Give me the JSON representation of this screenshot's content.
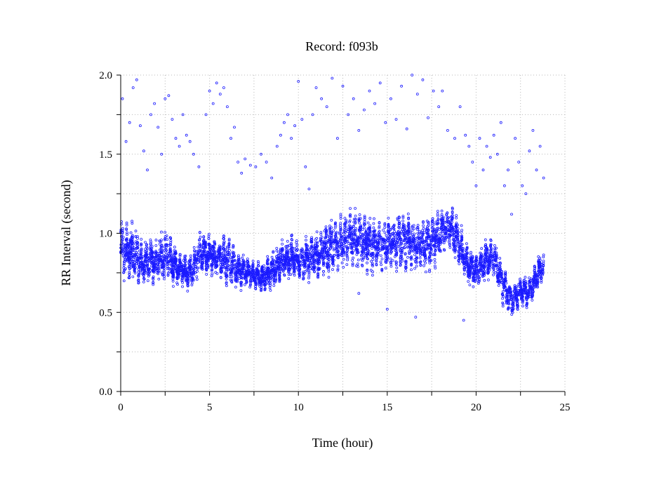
{
  "chart_data": {
    "type": "scatter",
    "title": "Record:  f093b",
    "xlabel": "Time (hour)",
    "ylabel": "RR Interval (second)",
    "xlim": [
      0,
      25
    ],
    "ylim": [
      0,
      2
    ],
    "xticks": [
      0,
      5,
      10,
      15,
      20,
      25
    ],
    "xtick_labels": [
      "0",
      "5",
      "10",
      "15",
      "20",
      "25"
    ],
    "yticks": [
      0,
      0.5,
      1.0,
      1.5,
      2.0
    ],
    "ytick_labels": [
      "0.0",
      "0.5",
      "1.0",
      "1.5",
      "2.0"
    ],
    "grid": true,
    "marker_color": "#1a1aff",
    "series": [
      {
        "name": "",
        "trend": [
          [
            0.0,
            0.9,
            0.22
          ],
          [
            0.4,
            0.88,
            0.22
          ],
          [
            0.8,
            0.86,
            0.22
          ],
          [
            1.2,
            0.8,
            0.14
          ],
          [
            1.6,
            0.83,
            0.16
          ],
          [
            2.0,
            0.82,
            0.16
          ],
          [
            2.5,
            0.86,
            0.22
          ],
          [
            3.0,
            0.8,
            0.14
          ],
          [
            3.5,
            0.76,
            0.12
          ],
          [
            4.0,
            0.75,
            0.12
          ],
          [
            4.5,
            0.88,
            0.16
          ],
          [
            5.0,
            0.87,
            0.14
          ],
          [
            5.5,
            0.84,
            0.14
          ],
          [
            6.0,
            0.84,
            0.2
          ],
          [
            6.5,
            0.78,
            0.14
          ],
          [
            7.0,
            0.76,
            0.12
          ],
          [
            7.5,
            0.73,
            0.1
          ],
          [
            8.0,
            0.72,
            0.1
          ],
          [
            8.5,
            0.76,
            0.12
          ],
          [
            9.0,
            0.82,
            0.14
          ],
          [
            9.5,
            0.85,
            0.16
          ],
          [
            10.0,
            0.83,
            0.14
          ],
          [
            10.5,
            0.84,
            0.16
          ],
          [
            11.0,
            0.86,
            0.18
          ],
          [
            11.5,
            0.9,
            0.18
          ],
          [
            12.0,
            0.92,
            0.2
          ],
          [
            12.5,
            0.95,
            0.2
          ],
          [
            13.0,
            0.97,
            0.22
          ],
          [
            13.5,
            0.96,
            0.22
          ],
          [
            14.0,
            0.93,
            0.2
          ],
          [
            14.5,
            0.92,
            0.2
          ],
          [
            15.0,
            0.93,
            0.2
          ],
          [
            15.5,
            0.95,
            0.2
          ],
          [
            16.0,
            0.96,
            0.22
          ],
          [
            16.5,
            0.93,
            0.2
          ],
          [
            17.0,
            0.92,
            0.2
          ],
          [
            17.5,
            0.95,
            0.2
          ],
          [
            18.0,
            1.0,
            0.18
          ],
          [
            18.5,
            1.05,
            0.18
          ],
          [
            19.0,
            0.93,
            0.16
          ],
          [
            19.5,
            0.8,
            0.14
          ],
          [
            20.0,
            0.76,
            0.14
          ],
          [
            20.5,
            0.82,
            0.14
          ],
          [
            21.0,
            0.84,
            0.14
          ],
          [
            21.5,
            0.68,
            0.16
          ],
          [
            22.0,
            0.56,
            0.12
          ],
          [
            22.5,
            0.64,
            0.12
          ],
          [
            23.0,
            0.62,
            0.12
          ],
          [
            23.5,
            0.75,
            0.12
          ],
          [
            23.8,
            0.8,
            0.1
          ]
        ],
        "outliers": [
          [
            0.1,
            1.85
          ],
          [
            0.3,
            1.58
          ],
          [
            0.5,
            1.7
          ],
          [
            0.7,
            1.92
          ],
          [
            0.9,
            1.97
          ],
          [
            1.1,
            1.68
          ],
          [
            1.3,
            1.52
          ],
          [
            1.5,
            1.4
          ],
          [
            1.7,
            1.75
          ],
          [
            1.9,
            1.82
          ],
          [
            2.1,
            1.67
          ],
          [
            2.3,
            1.5
          ],
          [
            2.5,
            1.85
          ],
          [
            2.7,
            1.87
          ],
          [
            2.9,
            1.72
          ],
          [
            3.1,
            1.6
          ],
          [
            3.3,
            1.55
          ],
          [
            3.5,
            1.75
          ],
          [
            3.7,
            1.62
          ],
          [
            3.9,
            1.58
          ],
          [
            4.1,
            1.5
          ],
          [
            4.4,
            1.42
          ],
          [
            4.8,
            1.75
          ],
          [
            5.0,
            1.9
          ],
          [
            5.2,
            1.82
          ],
          [
            5.4,
            1.95
          ],
          [
            5.6,
            1.88
          ],
          [
            5.8,
            1.92
          ],
          [
            6.0,
            1.8
          ],
          [
            6.2,
            1.6
          ],
          [
            6.4,
            1.67
          ],
          [
            6.6,
            1.45
          ],
          [
            6.8,
            1.38
          ],
          [
            7.0,
            1.47
          ],
          [
            7.3,
            1.43
          ],
          [
            7.6,
            1.42
          ],
          [
            7.9,
            1.5
          ],
          [
            8.2,
            1.45
          ],
          [
            8.5,
            1.35
          ],
          [
            8.8,
            1.55
          ],
          [
            9.0,
            1.62
          ],
          [
            9.2,
            1.7
          ],
          [
            9.4,
            1.75
          ],
          [
            9.6,
            1.6
          ],
          [
            9.8,
            1.68
          ],
          [
            10.0,
            1.96
          ],
          [
            10.2,
            1.72
          ],
          [
            10.4,
            1.42
          ],
          [
            10.6,
            1.28
          ],
          [
            10.8,
            1.75
          ],
          [
            11.0,
            1.92
          ],
          [
            11.3,
            1.85
          ],
          [
            11.6,
            1.8
          ],
          [
            11.9,
            1.98
          ],
          [
            12.2,
            1.6
          ],
          [
            12.5,
            1.93
          ],
          [
            12.8,
            1.75
          ],
          [
            13.1,
            1.85
          ],
          [
            13.4,
            1.65
          ],
          [
            13.7,
            1.78
          ],
          [
            14.0,
            1.9
          ],
          [
            14.3,
            1.82
          ],
          [
            14.6,
            1.95
          ],
          [
            14.9,
            1.7
          ],
          [
            15.2,
            1.85
          ],
          [
            15.5,
            1.72
          ],
          [
            15.8,
            1.93
          ],
          [
            16.1,
            1.66
          ],
          [
            16.4,
            2.0
          ],
          [
            16.7,
            1.88
          ],
          [
            17.0,
            1.97
          ],
          [
            17.3,
            1.73
          ],
          [
            17.6,
            1.9
          ],
          [
            17.9,
            1.8
          ],
          [
            18.1,
            1.9
          ],
          [
            18.4,
            1.65
          ],
          [
            18.8,
            1.6
          ],
          [
            19.1,
            1.8
          ],
          [
            19.4,
            1.62
          ],
          [
            19.6,
            1.55
          ],
          [
            19.8,
            1.45
          ],
          [
            20.0,
            1.3
          ],
          [
            20.2,
            1.6
          ],
          [
            20.4,
            1.4
          ],
          [
            20.6,
            1.55
          ],
          [
            20.8,
            1.48
          ],
          [
            21.0,
            1.62
          ],
          [
            21.2,
            1.5
          ],
          [
            21.4,
            1.7
          ],
          [
            21.6,
            1.3
          ],
          [
            21.8,
            1.4
          ],
          [
            22.0,
            1.12
          ],
          [
            22.2,
            1.6
          ],
          [
            22.4,
            1.45
          ],
          [
            22.6,
            1.3
          ],
          [
            22.8,
            1.25
          ],
          [
            23.0,
            1.52
          ],
          [
            23.2,
            1.65
          ],
          [
            23.4,
            1.4
          ],
          [
            23.6,
            1.55
          ],
          [
            23.8,
            1.35
          ],
          [
            15.0,
            0.52
          ],
          [
            16.6,
            0.47
          ],
          [
            19.3,
            0.45
          ],
          [
            13.4,
            0.62
          ],
          [
            8.0,
            0.68
          ]
        ]
      }
    ]
  }
}
